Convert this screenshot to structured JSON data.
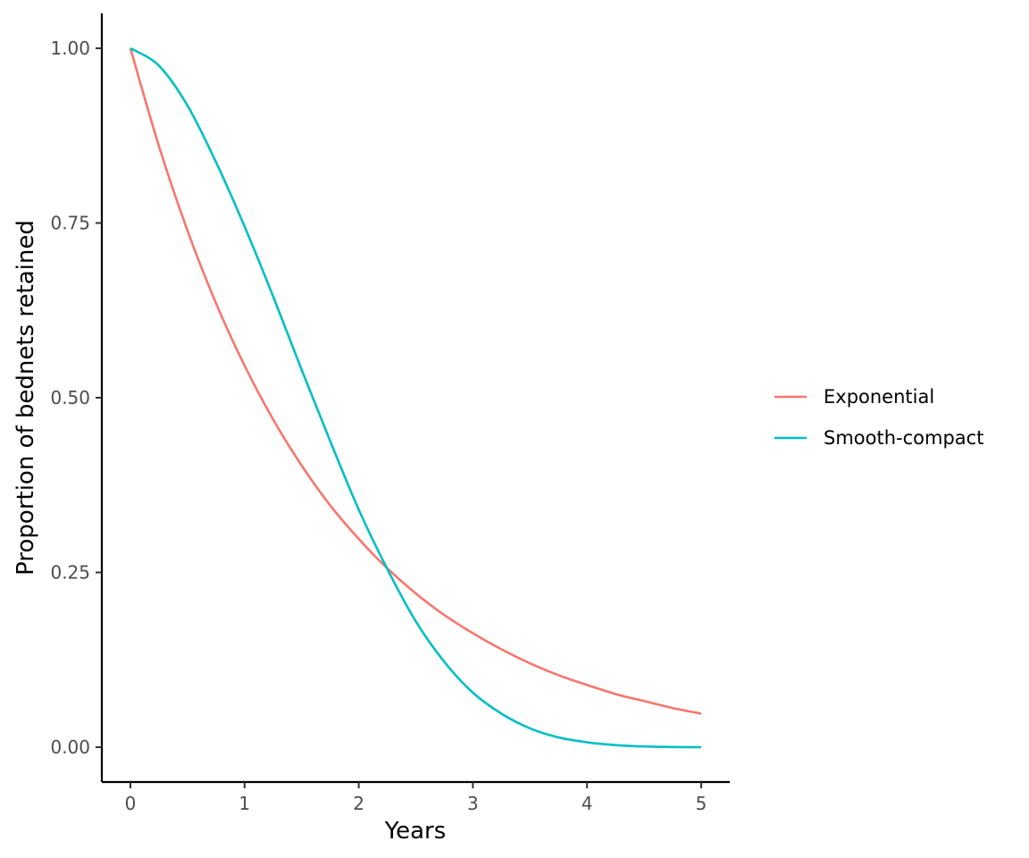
{
  "chart_data": {
    "type": "line",
    "title": "",
    "xlabel": "Years",
    "ylabel": "Proportion of bednets retained",
    "xlim": [
      0,
      5
    ],
    "ylim": [
      0,
      1
    ],
    "x_ticks": [
      0,
      1,
      2,
      3,
      4,
      5
    ],
    "x_tick_labels": [
      "0",
      "1",
      "2",
      "3",
      "4",
      "5"
    ],
    "y_ticks": [
      0,
      0.25,
      0.5,
      0.75,
      1
    ],
    "y_tick_labels": [
      "0.00",
      "0.25",
      "0.50",
      "0.75",
      "1.00"
    ],
    "grid": false,
    "legend_position": "right",
    "x": [
      0,
      0.25,
      0.5,
      0.75,
      1,
      1.25,
      1.5,
      1.75,
      2,
      2.25,
      2.5,
      2.75,
      3,
      3.25,
      3.5,
      3.75,
      4,
      4.25,
      4.5,
      4.75,
      5
    ],
    "series": [
      {
        "name": "Exponential",
        "color": "#F8766D",
        "values": [
          1.0,
          0.86,
          0.739,
          0.635,
          0.546,
          0.469,
          0.403,
          0.346,
          0.298,
          0.256,
          0.22,
          0.189,
          0.163,
          0.14,
          0.12,
          0.103,
          0.089,
          0.076,
          0.066,
          0.056,
          0.048
        ]
      },
      {
        "name": "Smooth-compact",
        "color": "#00BFC4",
        "values": [
          1.0,
          0.975,
          0.918,
          0.837,
          0.745,
          0.645,
          0.54,
          0.438,
          0.34,
          0.255,
          0.18,
          0.122,
          0.078,
          0.048,
          0.027,
          0.014,
          0.007,
          0.003,
          0.001,
          0.0002,
          0.0
        ]
      }
    ]
  }
}
